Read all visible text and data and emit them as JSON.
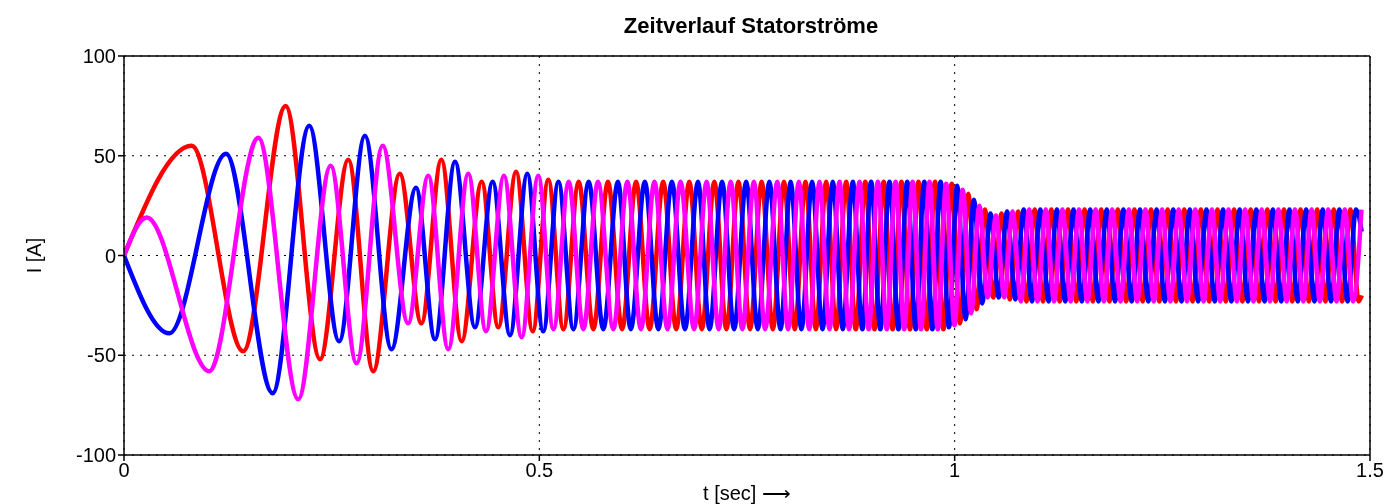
{
  "chart_data": {
    "type": "line",
    "title": "Zeitverlauf Statorströme",
    "xlabel": "t [sec]  ⟶",
    "ylabel": "I [A]",
    "xlim": [
      0,
      1.5
    ],
    "xticks": [
      0,
      0.5,
      1,
      1.5
    ],
    "ylim": [
      -100,
      100
    ],
    "yticks": [
      -100,
      -50,
      0,
      50,
      100
    ],
    "grid": true,
    "legend": false,
    "series": [
      {
        "color": "#ff0000",
        "x": [
          0,
          0.0815,
          0.1436,
          0.1946,
          0.236,
          0.27,
          0.3,
          0.332,
          0.358,
          0.382,
          0.4065,
          0.4306,
          0.4506,
          0.472,
          0.492,
          0.5108,
          0.529,
          0.5474,
          0.565,
          0.5826,
          0.5996,
          0.6165,
          0.6328,
          0.6491,
          0.6648,
          0.6805,
          0.6956,
          0.7107,
          0.7252,
          0.7397,
          0.7537,
          0.7676,
          0.7811,
          0.7945,
          0.8075,
          0.8204,
          0.8329,
          0.8453,
          0.8573,
          0.8693,
          0.8809,
          0.8924,
          0.9035,
          0.9146,
          0.9253,
          0.9359,
          0.9462,
          0.9564,
          0.9664,
          0.9764,
          0.9864,
          0.9964,
          1.0064,
          1.0164,
          1.0264,
          1.0364,
          1.0464,
          1.0564,
          1.0664,
          1.0764,
          1.0864,
          1.0964,
          1.1064,
          1.1164,
          1.1264,
          1.1364,
          1.1464,
          1.1564,
          1.1664,
          1.1764,
          1.1864,
          1.1964,
          1.2064,
          1.2164,
          1.2264,
          1.2364,
          1.2464,
          1.2564,
          1.2664,
          1.2764,
          1.2864,
          1.2964,
          1.3064,
          1.3164,
          1.3264,
          1.3364,
          1.3464,
          1.3564,
          1.3664,
          1.3764,
          1.3864,
          1.3964,
          1.4064,
          1.4164,
          1.4264,
          1.4364,
          1.4464,
          1.4564,
          1.4664,
          1.4764,
          1.4864,
          1.49
        ],
        "values": [
          0,
          55,
          -48,
          75,
          -52,
          48,
          -58,
          41,
          -34,
          48,
          -43,
          37,
          -36,
          42,
          -38,
          38,
          -37,
          37,
          -37,
          37,
          -37,
          37,
          -37,
          37,
          -37,
          37,
          -37,
          37,
          -37,
          37,
          -37,
          37,
          -37,
          37,
          -37,
          37,
          -37,
          37,
          -37,
          37,
          -37,
          37,
          -37,
          37,
          -37,
          37,
          -37,
          37,
          -37,
          37,
          -37,
          36,
          -34,
          31,
          -27,
          23,
          -21,
          21,
          -22,
          22,
          -23,
          23,
          -23,
          23,
          -23,
          23,
          -23,
          23,
          -23,
          23,
          -23,
          23,
          -23,
          23,
          -23,
          23,
          -23,
          23,
          -23,
          23,
          -23,
          23,
          -23,
          23,
          -23,
          23,
          -23,
          23,
          -23,
          23,
          -23,
          23,
          -23,
          23,
          -23,
          23,
          -23,
          23,
          -23,
          23,
          -23,
          -20
        ]
      },
      {
        "color": "#0000ff",
        "x": [
          0,
          0.0546,
          0.1228,
          0.179,
          0.223,
          0.259,
          0.29,
          0.322,
          0.3515,
          0.3744,
          0.3985,
          0.4225,
          0.4438,
          0.4647,
          0.4855,
          0.5047,
          0.523,
          0.541,
          0.5594,
          0.577,
          0.5946,
          0.6101,
          0.627,
          0.6433,
          0.6596,
          0.6753,
          0.691,
          0.7049,
          0.72,
          0.7345,
          0.749,
          0.763,
          0.7769,
          0.7904,
          0.8025,
          0.8155,
          0.8284,
          0.8409,
          0.8533,
          0.8653,
          0.8773,
          0.8889,
          0.8994,
          0.9105,
          0.9216,
          0.9323,
          0.9429,
          0.9532,
          0.9634,
          0.9731,
          0.9831,
          0.9931,
          1.0031,
          1.0131,
          1.0231,
          1.0331,
          1.0431,
          1.0531,
          1.0631,
          1.0731,
          1.0831,
          1.0931,
          1.1031,
          1.1131,
          1.1231,
          1.1331,
          1.1431,
          1.1531,
          1.1631,
          1.1731,
          1.1831,
          1.1931,
          1.2031,
          1.2131,
          1.2231,
          1.2331,
          1.2431,
          1.2531,
          1.2631,
          1.2731,
          1.2831,
          1.2931,
          1.3031,
          1.3131,
          1.3231,
          1.3331,
          1.3431,
          1.3531,
          1.3631,
          1.3731,
          1.3831,
          1.3931,
          1.4031,
          1.4131,
          1.4231,
          1.4331,
          1.4431,
          1.4531,
          1.4631,
          1.4731,
          1.4831,
          1.49
        ],
        "values": [
          0,
          -39,
          51,
          -69,
          65,
          -43,
          60,
          -47,
          34,
          -42,
          47,
          -36,
          37,
          -40,
          41,
          -38,
          37,
          -37,
          37,
          -37,
          37,
          -37,
          37,
          -37,
          37,
          -37,
          37,
          -37,
          37,
          -37,
          37,
          -37,
          37,
          -37,
          37,
          -37,
          37,
          -37,
          37,
          -37,
          37,
          -37,
          37,
          -37,
          37,
          -37,
          37,
          -37,
          37,
          -37,
          37,
          -36,
          35,
          -32,
          28,
          -24,
          21,
          -21,
          22,
          -22,
          23,
          -23,
          23,
          -23,
          23,
          -23,
          23,
          -23,
          23,
          -23,
          23,
          -23,
          23,
          -23,
          23,
          -23,
          23,
          -23,
          23,
          -23,
          23,
          -23,
          23,
          -23,
          23,
          -23,
          23,
          -23,
          23,
          -23,
          23,
          -23,
          23,
          -23,
          23,
          -23,
          23,
          -23,
          23,
          -23,
          23,
          12
        ]
      },
      {
        "color": "#ff00ff",
        "x": [
          0,
          0.0273,
          0.1027,
          0.1617,
          0.2098,
          0.2488,
          0.28,
          0.3114,
          0.342,
          0.3663,
          0.3904,
          0.4145,
          0.4358,
          0.4574,
          0.4787,
          0.4987,
          0.517,
          0.5354,
          0.553,
          0.5706,
          0.5891,
          0.606,
          0.6223,
          0.6386,
          0.6543,
          0.67,
          0.6863,
          0.7014,
          0.7159,
          0.7304,
          0.7444,
          0.7583,
          0.7718,
          0.7865,
          0.7995,
          0.8124,
          0.8249,
          0.8373,
          0.8493,
          0.8613,
          0.8729,
          0.8854,
          0.8965,
          0.9076,
          0.9183,
          0.9289,
          0.9392,
          0.9494,
          0.9594,
          0.9697,
          0.9797,
          0.9897,
          0.9997,
          1.0097,
          1.0197,
          1.0297,
          1.0397,
          1.0497,
          1.0597,
          1.0697,
          1.0797,
          1.0897,
          1.0997,
          1.1097,
          1.1197,
          1.1297,
          1.1397,
          1.1497,
          1.1597,
          1.1697,
          1.1797,
          1.1897,
          1.1997,
          1.2097,
          1.2197,
          1.2297,
          1.2397,
          1.2497,
          1.2597,
          1.2697,
          1.2797,
          1.2897,
          1.2997,
          1.3097,
          1.3197,
          1.3297,
          1.3397,
          1.3497,
          1.3597,
          1.3697,
          1.3797,
          1.3897,
          1.3997,
          1.4097,
          1.4197,
          1.4297,
          1.4397,
          1.4497,
          1.4597,
          1.4697,
          1.4797,
          1.4897
        ],
        "values": [
          0,
          19,
          -58,
          59,
          -72,
          45,
          -54,
          55,
          -34,
          40,
          -47,
          41,
          -38,
          40,
          -41,
          40,
          -37,
          37,
          -37,
          37,
          -37,
          37,
          -37,
          37,
          -37,
          37,
          -37,
          37,
          -37,
          37,
          -37,
          37,
          -37,
          37,
          -37,
          37,
          -37,
          37,
          -37,
          37,
          -37,
          37,
          -37,
          37,
          -37,
          37,
          -37,
          37,
          -37,
          37,
          -37,
          36,
          -35,
          33,
          -29,
          25,
          -21,
          20,
          -21,
          22,
          -23,
          23,
          -23,
          23,
          -23,
          23,
          -23,
          23,
          -23,
          23,
          -23,
          23,
          -23,
          23,
          -23,
          23,
          -23,
          23,
          -23,
          23,
          -23,
          23,
          -23,
          23,
          -23,
          23,
          -23,
          23,
          -23,
          23,
          -23,
          23,
          -23,
          23,
          -23,
          23,
          -23,
          23,
          -23,
          23,
          -23,
          23
        ]
      }
    ]
  }
}
